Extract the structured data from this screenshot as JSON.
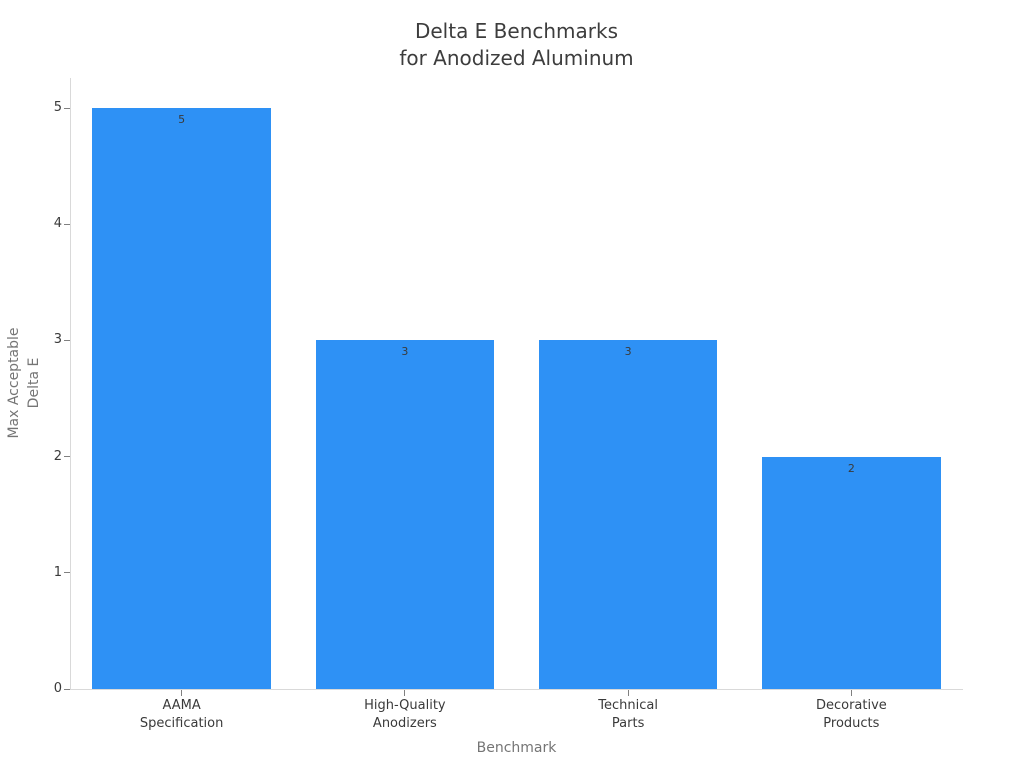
{
  "chart_data": {
    "type": "bar",
    "title": "Delta E Benchmarks for Anodized Aluminum",
    "title_lines": [
      "Delta E Benchmarks",
      "for Anodized Aluminum"
    ],
    "categories": [
      [
        "AAMA",
        "Specification"
      ],
      [
        "High-Quality",
        "Anodizers"
      ],
      [
        "Technical",
        "Parts"
      ],
      [
        "Decorative",
        "Products"
      ]
    ],
    "values": [
      5,
      3,
      3,
      2
    ],
    "bar_labels": [
      "5",
      "3",
      "3",
      "2"
    ],
    "xlabel": "Benchmark",
    "ylabel": "Max Acceptable Delta E",
    "ylabel_lines": [
      "Max Acceptable",
      "Delta E"
    ],
    "ylim": [
      0,
      5
    ],
    "yticks": [
      0,
      1,
      2,
      3,
      4,
      5
    ],
    "grid": false,
    "legend": false,
    "bar_width_fraction": 0.8,
    "colors": {
      "bar": "#2e91f5",
      "axis_line": "#d9d9d9",
      "tick_mark": "#808080",
      "tick_label": "#3a3a3a",
      "title": "#3d3d3d",
      "axis_title": "#757575",
      "bar_value_label": "#3a3a3a",
      "background": "#ffffff"
    }
  }
}
